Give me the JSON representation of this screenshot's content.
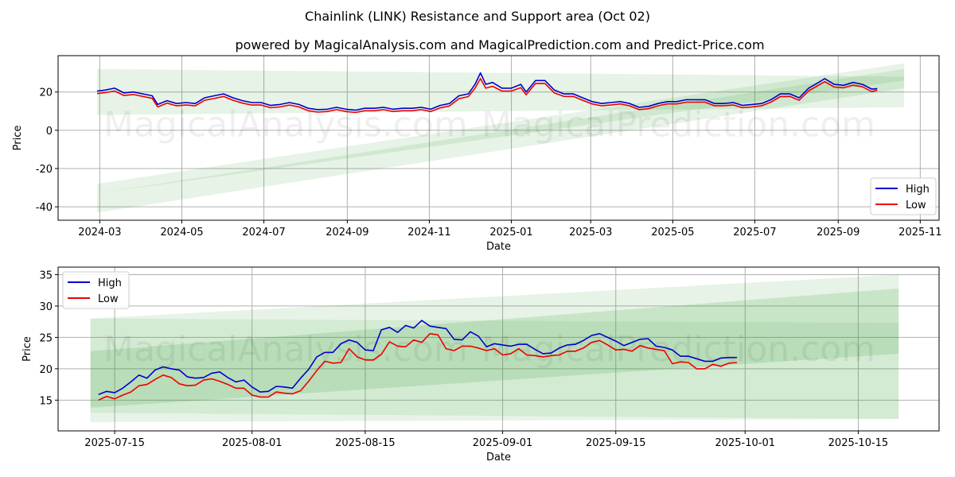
{
  "title": "Chainlink (LINK) Resistance and Support area (Oct 02)",
  "subtitle": "powered by MagicalAnalysis.com and MagicalPrediction.com and Predict-Price.com",
  "watermarks": [
    "MagicalAnalysis.com",
    "MagicalPrediction.com"
  ],
  "colors": {
    "high": "#0000cc",
    "low": "#ee0000",
    "band": "#2e9b2e"
  },
  "chart_data": [
    {
      "type": "line",
      "xlabel": "Date",
      "ylabel": "Price",
      "xlim": [
        "2024-01-30",
        "2025-11-15"
      ],
      "ylim": [
        -47,
        39
      ],
      "yticks": [
        -40,
        -20,
        0,
        20
      ],
      "xticks": [
        "2024-03",
        "2024-05",
        "2024-07",
        "2024-09",
        "2024-11",
        "2025-01",
        "2025-03",
        "2025-05",
        "2025-07",
        "2025-09",
        "2025-11"
      ],
      "legend": {
        "position": "bottom-right",
        "entries": [
          "High",
          "Low"
        ]
      },
      "grid": true,
      "bands": [
        {
          "x": [
            "2024-02-28",
            "2025-10-20"
          ],
          "top": [
            32,
            28
          ],
          "bottom": [
            8,
            12
          ],
          "alpha": 0.12
        },
        {
          "x": [
            "2024-02-28",
            "2025-10-20"
          ],
          "top": [
            -28,
            35
          ],
          "bottom": [
            -33,
            26
          ],
          "alpha": 0.12
        },
        {
          "x": [
            "2024-02-28",
            "2025-10-20"
          ],
          "top": [
            -33,
            32
          ],
          "bottom": [
            -43,
            22
          ],
          "alpha": 0.12
        }
      ],
      "dates": [
        "2024-02-28",
        "2024-03-05",
        "2024-03-12",
        "2024-03-19",
        "2024-03-26",
        "2024-04-02",
        "2024-04-09",
        "2024-04-13",
        "2024-04-20",
        "2024-04-27",
        "2024-05-04",
        "2024-05-11",
        "2024-05-18",
        "2024-05-25",
        "2024-06-01",
        "2024-06-08",
        "2024-06-15",
        "2024-06-22",
        "2024-06-29",
        "2024-07-06",
        "2024-07-13",
        "2024-07-20",
        "2024-07-27",
        "2024-08-03",
        "2024-08-10",
        "2024-08-17",
        "2024-08-24",
        "2024-08-31",
        "2024-09-07",
        "2024-09-14",
        "2024-09-21",
        "2024-09-28",
        "2024-10-05",
        "2024-10-12",
        "2024-10-19",
        "2024-10-26",
        "2024-11-02",
        "2024-11-09",
        "2024-11-16",
        "2024-11-23",
        "2024-11-30",
        "2024-12-05",
        "2024-12-09",
        "2024-12-13",
        "2024-12-18",
        "2024-12-25",
        "2025-01-01",
        "2025-01-08",
        "2025-01-12",
        "2025-01-19",
        "2025-01-26",
        "2025-02-02",
        "2025-02-09",
        "2025-02-16",
        "2025-02-23",
        "2025-03-02",
        "2025-03-09",
        "2025-03-16",
        "2025-03-23",
        "2025-03-30",
        "2025-04-06",
        "2025-04-13",
        "2025-04-20",
        "2025-04-27",
        "2025-05-04",
        "2025-05-11",
        "2025-05-18",
        "2025-05-25",
        "2025-06-01",
        "2025-06-08",
        "2025-06-15",
        "2025-06-22",
        "2025-06-29",
        "2025-07-06",
        "2025-07-13",
        "2025-07-20",
        "2025-07-27",
        "2025-08-03",
        "2025-08-10",
        "2025-08-15",
        "2025-08-22",
        "2025-08-29",
        "2025-09-05",
        "2025-09-12",
        "2025-09-19",
        "2025-09-26",
        "2025-09-30"
      ],
      "series": [
        {
          "name": "High",
          "values": [
            20.5,
            21,
            22,
            19.5,
            20,
            19,
            18,
            13.5,
            15.5,
            14,
            14.5,
            14,
            17,
            18,
            19,
            17,
            15.5,
            14.5,
            14.5,
            13,
            13.5,
            14.5,
            13.5,
            11.5,
            10.8,
            11,
            12,
            11,
            10.5,
            11.5,
            11.5,
            12,
            11,
            11.5,
            11.5,
            12,
            11,
            13,
            14,
            18,
            19,
            24,
            30,
            24,
            25,
            22,
            22,
            24,
            20,
            26,
            26,
            21,
            19,
            19,
            17,
            15,
            14,
            14.5,
            15,
            14,
            12,
            12.5,
            14,
            15,
            15,
            16,
            16,
            16,
            14,
            14,
            14.5,
            13,
            13.5,
            14,
            16,
            19,
            19,
            17,
            22,
            24,
            27,
            24,
            23.5,
            25,
            24,
            21.5,
            21.8
          ]
        },
        {
          "name": "Low",
          "values": [
            19.2,
            19.7,
            20.5,
            18.2,
            18.7,
            17.7,
            16.7,
            12.2,
            14.2,
            12.8,
            13.2,
            12.8,
            15.7,
            16.6,
            17.7,
            15.7,
            14.2,
            13.2,
            13.2,
            11.8,
            12.2,
            13.2,
            12.2,
            10.2,
            9.5,
            9.8,
            10.8,
            9.8,
            9.3,
            10.2,
            10.2,
            10.8,
            9.8,
            10.2,
            10.2,
            10.8,
            9.8,
            11.7,
            12.7,
            16.5,
            17.6,
            22,
            27,
            22,
            23,
            20.5,
            20.5,
            22.3,
            18.5,
            24.5,
            24.4,
            19.5,
            17.7,
            17.7,
            15.7,
            13.8,
            12.8,
            13.2,
            13.8,
            12.8,
            10.8,
            11.3,
            12.8,
            13.8,
            13.8,
            14.7,
            14.7,
            14.7,
            12.8,
            12.8,
            13.2,
            11.8,
            12.2,
            12.8,
            14.7,
            17.6,
            17.7,
            15.7,
            20.6,
            22.6,
            25.4,
            22.6,
            22.2,
            23.6,
            22.7,
            20.2,
            21
          ]
        }
      ]
    },
    {
      "type": "line",
      "xlabel": "Date",
      "ylabel": "Price",
      "xlim": [
        "2025-07-08",
        "2025-10-25"
      ],
      "ylim": [
        10.1,
        36.2
      ],
      "yticks": [
        15,
        20,
        25,
        30,
        35
      ],
      "xticks": [
        "2025-07-15",
        "2025-08-01",
        "2025-08-15",
        "2025-09-01",
        "2025-09-15",
        "2025-10-01",
        "2025-10-15"
      ],
      "legend": {
        "position": "top-left",
        "entries": [
          "High",
          "Low"
        ]
      },
      "grid": true,
      "bands": [
        {
          "x": [
            "2025-07-12",
            "2025-10-20"
          ],
          "top": [
            28,
            35
          ],
          "bottom": [
            11.5,
            12
          ],
          "alpha": 0.12
        },
        {
          "x": [
            "2025-07-12",
            "2025-10-20"
          ],
          "top": [
            28,
            27.3
          ],
          "bottom": [
            13,
            12
          ],
          "alpha": 0.1
        },
        {
          "x": [
            "2025-07-12",
            "2025-10-20"
          ],
          "top": [
            22.8,
            32.8
          ],
          "bottom": [
            13.8,
            22.4
          ],
          "alpha": 0.16
        }
      ],
      "start_date": "2025-07-13",
      "series": [
        {
          "name": "High",
          "values": [
            15.9,
            16.4,
            16.2,
            16.9,
            17.9,
            19.0,
            18.5,
            19.8,
            20.3,
            20.0,
            19.8,
            18.7,
            18.5,
            18.6,
            19.3,
            19.5,
            18.6,
            17.9,
            18.2,
            17.1,
            16.3,
            16.4,
            17.2,
            17.1,
            16.9,
            18.5,
            19.9,
            21.9,
            22.6,
            22.6,
            24.0,
            24.6,
            24.2,
            23.0,
            22.9,
            26.2,
            26.6,
            25.8,
            26.9,
            26.5,
            27.7,
            26.8,
            26.6,
            26.4,
            24.7,
            24.6,
            25.9,
            25.2,
            23.5,
            24.0,
            23.8,
            23.6,
            23.9,
            23.9,
            23.1,
            22.4,
            22.5,
            23.3,
            23.8,
            23.9,
            24.5,
            25.3,
            25.6,
            25.0,
            24.4,
            23.7,
            24.2,
            24.7,
            24.8,
            23.6,
            23.4,
            23.0,
            22.0,
            22.0,
            21.6,
            21.2,
            21.2,
            21.7,
            21.8,
            21.8
          ]
        },
        {
          "name": "Low",
          "values": [
            15.0,
            15.6,
            15.2,
            15.8,
            16.3,
            17.3,
            17.5,
            18.3,
            19.0,
            18.6,
            17.6,
            17.3,
            17.4,
            18.2,
            18.4,
            18.0,
            17.5,
            16.9,
            16.9,
            15.8,
            15.5,
            15.5,
            16.3,
            16.1,
            16.0,
            16.5,
            18.0,
            19.7,
            21.2,
            20.9,
            21.0,
            23.2,
            21.9,
            21.4,
            21.4,
            22.3,
            24.3,
            23.6,
            23.5,
            24.6,
            24.2,
            25.6,
            25.4,
            23.2,
            22.9,
            23.6,
            23.6,
            23.3,
            22.9,
            23.2,
            22.2,
            22.4,
            23.2,
            22.2,
            22.1,
            21.9,
            22.1,
            22.2,
            22.8,
            22.8,
            23.3,
            24.2,
            24.5,
            23.8,
            23.0,
            23.1,
            22.8,
            23.7,
            23.3,
            23.1,
            22.9,
            20.8,
            21.1,
            21.0,
            20.0,
            20.0,
            20.7,
            20.4,
            20.9,
            21.0
          ]
        }
      ]
    }
  ]
}
